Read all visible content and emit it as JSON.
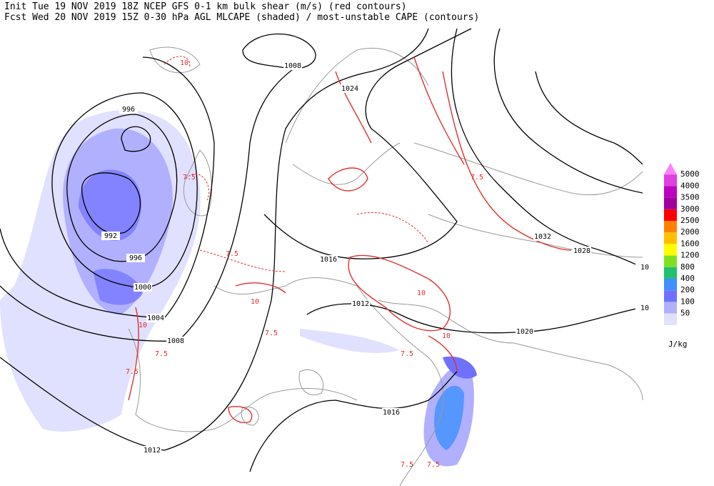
{
  "header": {
    "line1": "Init  Tue 19 NOV 2019 18Z  NCEP GFS 0-1 km bulk shear (m/s) (red contours)",
    "line2": "Fcst Wed 20 NOV 2019 15Z 0-30 hPa AGL MLCAPE (shaded) / most-unstable CAPE (contours)"
  },
  "legend": {
    "levels": [
      {
        "label": "5000",
        "color": "#e040e0"
      },
      {
        "label": "4000",
        "color": "#c000c0"
      },
      {
        "label": "3500",
        "color": "#a000a0"
      },
      {
        "label": "3000",
        "color": "#ff0000"
      },
      {
        "label": "2500",
        "color": "#ff8000"
      },
      {
        "label": "2000",
        "color": "#ffc000"
      },
      {
        "label": "1600",
        "color": "#ffff00"
      },
      {
        "label": "1200",
        "color": "#80e020"
      },
      {
        "label": "800",
        "color": "#20c070"
      },
      {
        "label": "400",
        "color": "#4090ff"
      },
      {
        "label": "200",
        "color": "#7070ff"
      },
      {
        "label": "100",
        "color": "#b0b0ff"
      },
      {
        "label": "50",
        "color": "#e0e0ff"
      }
    ],
    "unit": "J/kg"
  },
  "isobar_labels": [
    "1008",
    "1024",
    "996",
    "992",
    "996",
    "1000",
    "1004",
    "1008",
    "1016",
    "1012",
    "1032",
    "1028",
    "1020",
    "1016",
    "1012",
    "10",
    "10"
  ],
  "shear_labels": [
    "10",
    "7.5",
    "7.5",
    "10",
    "7.5",
    "7.5",
    "7.5",
    "10",
    "10",
    "7.5",
    "10",
    "7.5",
    "7.5",
    "7.5"
  ]
}
